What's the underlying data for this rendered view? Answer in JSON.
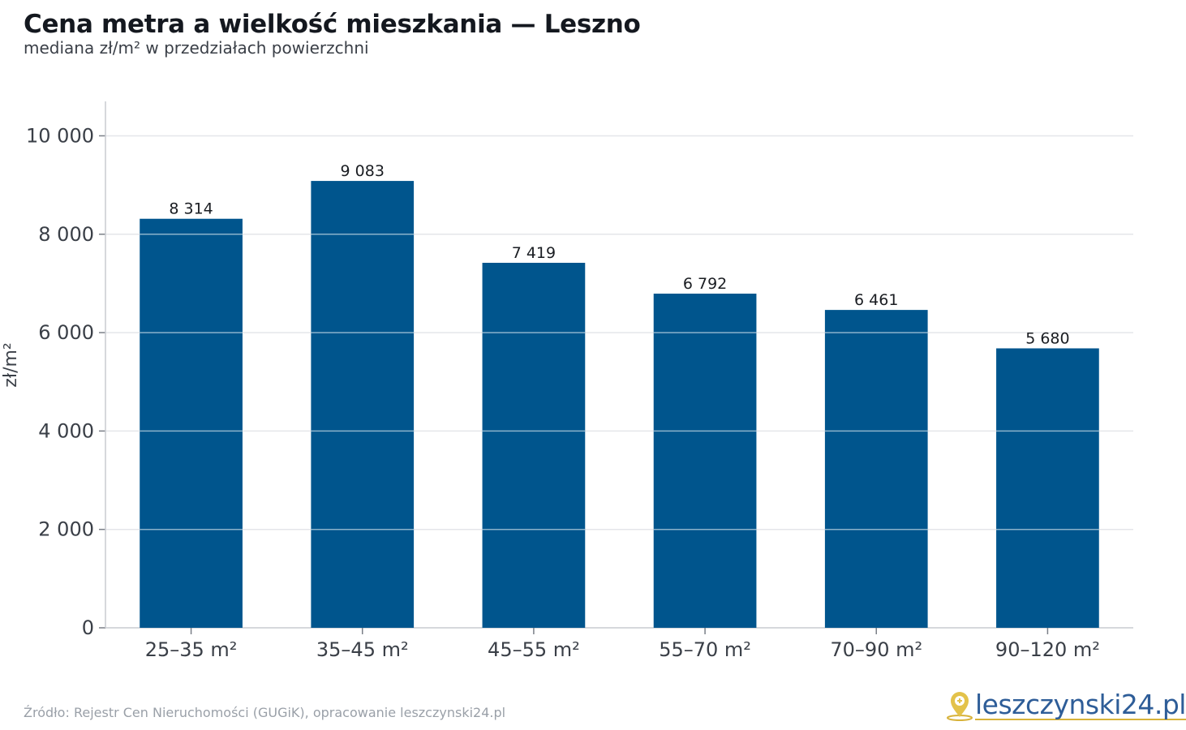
{
  "header": {
    "title": "Cena metra a wielkość mieszkania — Leszno",
    "subtitle": "mediana zł/m² w przedziałach powierzchni"
  },
  "footer": {
    "source": "Źródło: Rejestr Cen Nieruchomości (GUGiK), opracowanie leszczynski24.pl",
    "logo_text": "leszczynski24.pl"
  },
  "colors": {
    "bar": "#00558d",
    "grid": "#e4e6ea",
    "axis": "#c9ccd1",
    "logo_accent": "#d7b23a",
    "logo_text": "#2e5d98"
  },
  "chart_data": {
    "type": "bar",
    "title": "Cena metra a wielkość mieszkania — Leszno",
    "subtitle": "mediana zł/m² w przedziałach powierzchni",
    "xlabel": "",
    "ylabel": "zł/m²",
    "categories": [
      "25–35 m²",
      "35–45 m²",
      "45–55 m²",
      "55–70 m²",
      "70–90 m²",
      "90–120 m²"
    ],
    "values": [
      8314,
      9083,
      7419,
      6792,
      6461,
      5680
    ],
    "value_labels": [
      "8 314",
      "9 083",
      "7 419",
      "6 792",
      "6 461",
      "5 680"
    ],
    "ylim": [
      0,
      10700
    ],
    "yticks": [
      0,
      2000,
      4000,
      6000,
      8000,
      10000
    ],
    "ytick_labels": [
      "0",
      "2 000",
      "4 000",
      "6 000",
      "8 000",
      "10 000"
    ],
    "grid": true,
    "legend": "none"
  }
}
